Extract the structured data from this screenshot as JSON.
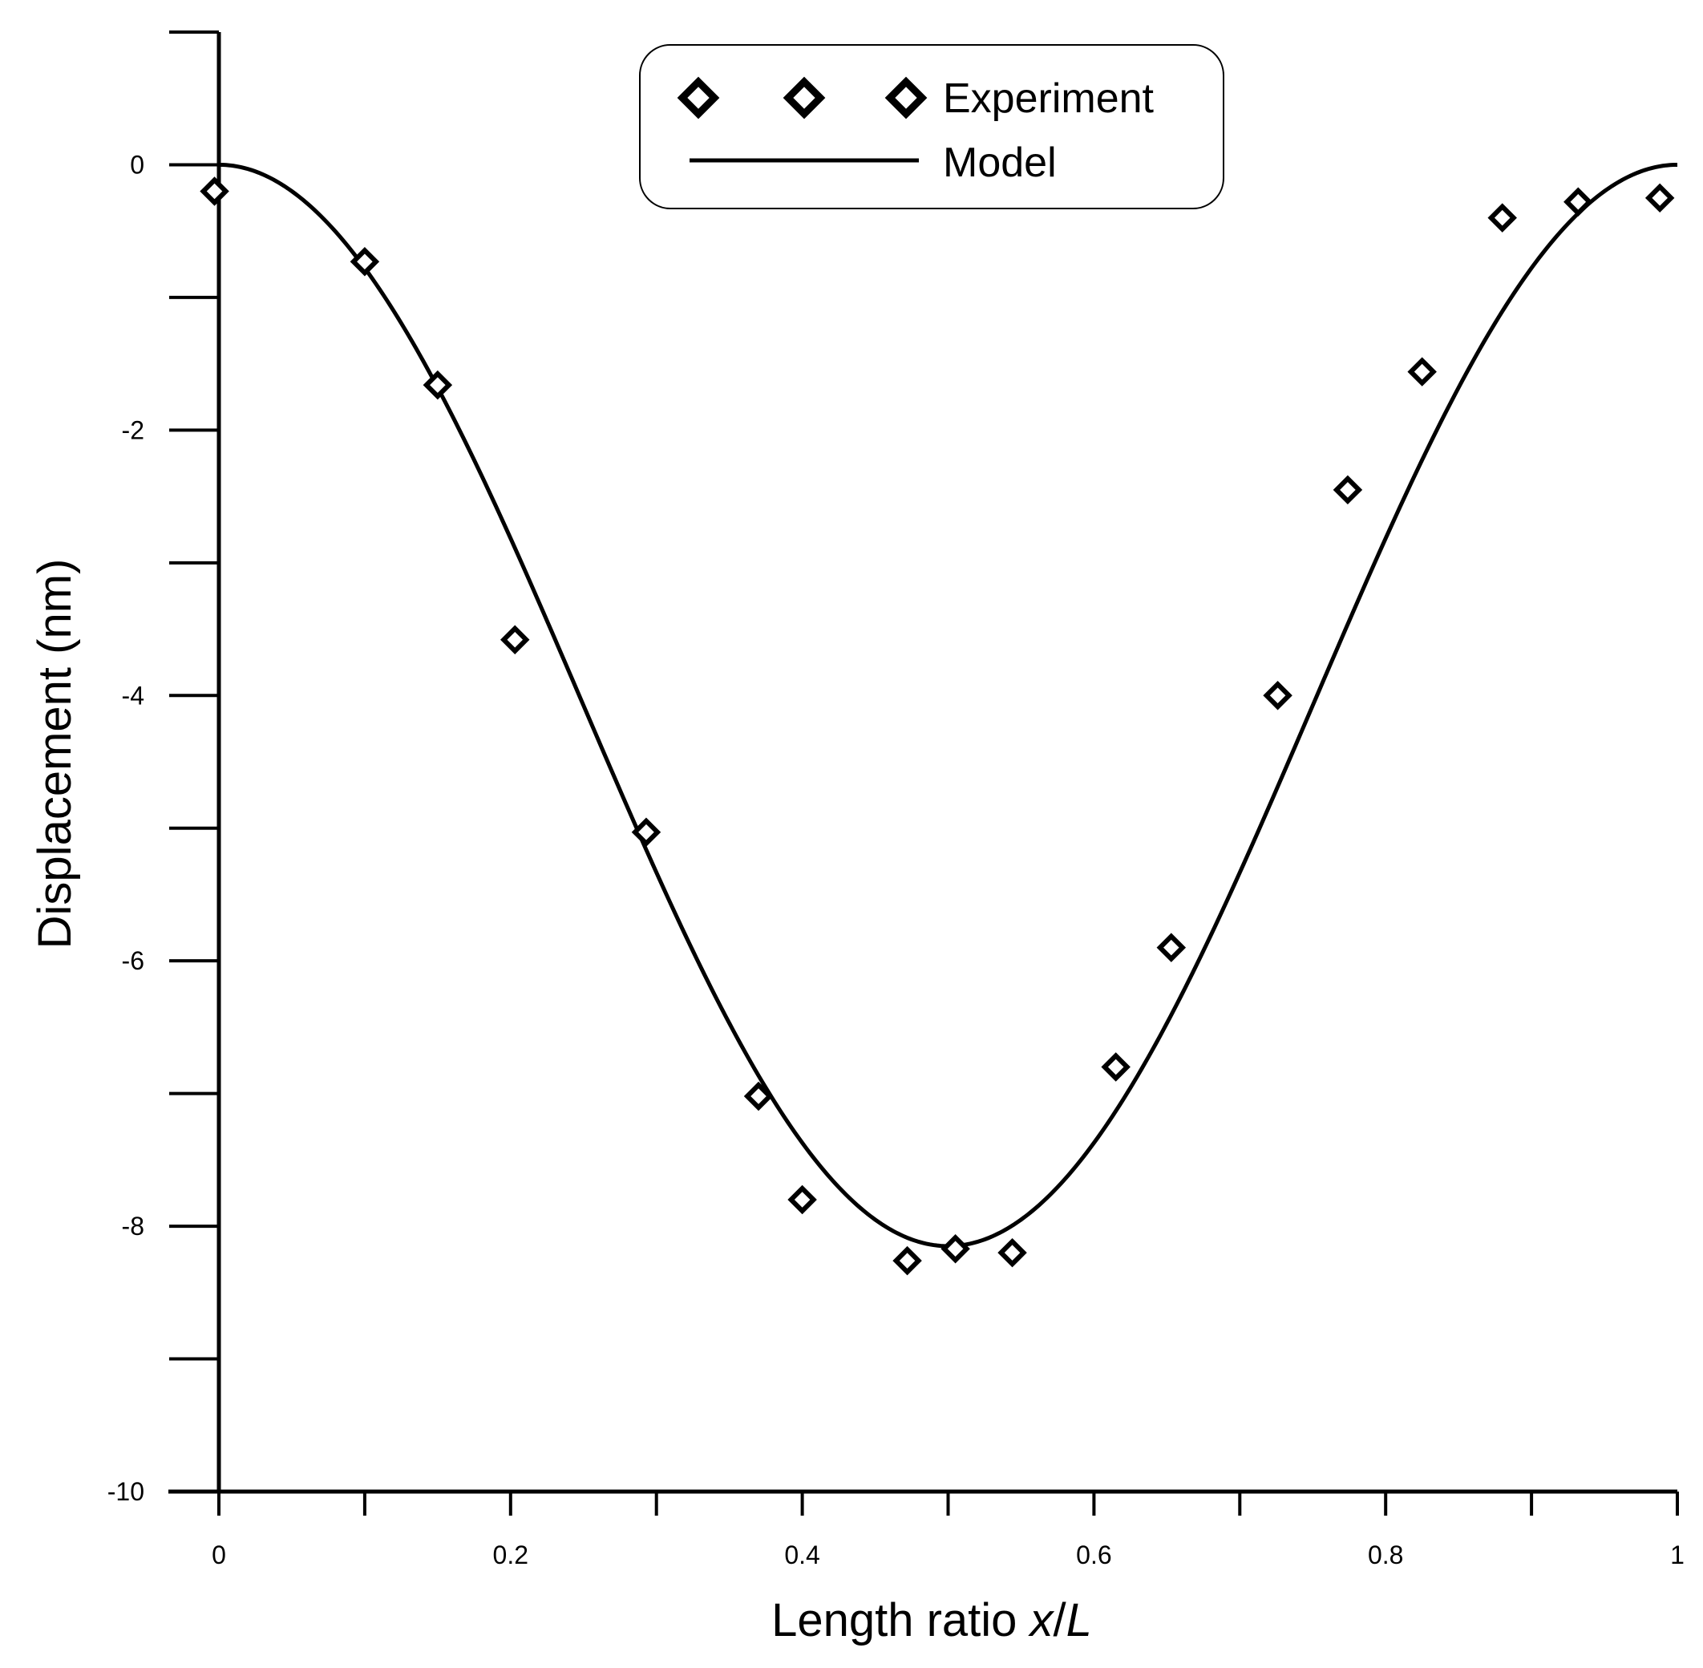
{
  "chart_data": {
    "type": "scatter",
    "title": "",
    "xlabel_parts": [
      "Length ratio ",
      "x",
      "/",
      "L"
    ],
    "ylabel": "Displacement (nm)",
    "xlim": [
      0,
      1
    ],
    "ylim": [
      -10,
      1
    ],
    "xticks": [
      0,
      0.1,
      0.2,
      0.3,
      0.4,
      0.5,
      0.6,
      0.7,
      0.8,
      0.9,
      1
    ],
    "xtick_labels": [
      "0",
      "0.2",
      "0.4",
      "0.6",
      "0.8",
      "1"
    ],
    "xtick_label_values": [
      0,
      0.2,
      0.4,
      0.6,
      0.8,
      1
    ],
    "yticks": [
      1,
      0,
      -1,
      -2,
      -3,
      -4,
      -5,
      -6,
      -7,
      -8,
      -9,
      -10
    ],
    "ytick_labels": [
      "0",
      "-2",
      "-4",
      "-6",
      "-8",
      "-10"
    ],
    "ytick_label_values": [
      0,
      -2,
      -4,
      -6,
      -8,
      -10
    ],
    "legend": {
      "placement": "top-center",
      "entries": [
        "Experiment",
        "Model"
      ]
    },
    "series": [
      {
        "name": "Experiment",
        "kind": "scatter",
        "marker": "diamond-open",
        "x": [
          -0.003,
          0.1,
          0.15,
          0.203,
          0.293,
          0.37,
          0.4,
          0.472,
          0.505,
          0.544,
          0.615,
          0.653,
          0.726,
          0.774,
          0.825,
          0.88,
          0.932,
          0.988
        ],
        "y": [
          -0.2,
          -0.73,
          -1.66,
          -3.58,
          -5.03,
          -7.02,
          -7.8,
          -8.26,
          -8.17,
          -8.2,
          -6.8,
          -5.9,
          -4.0,
          -2.45,
          -1.56,
          -0.4,
          -0.28,
          -0.25
        ]
      },
      {
        "name": "Model",
        "kind": "line",
        "formula": "y = -4.075 * (1 - cos(2*pi*x))",
        "amplitude_min": -8.15
      }
    ]
  }
}
